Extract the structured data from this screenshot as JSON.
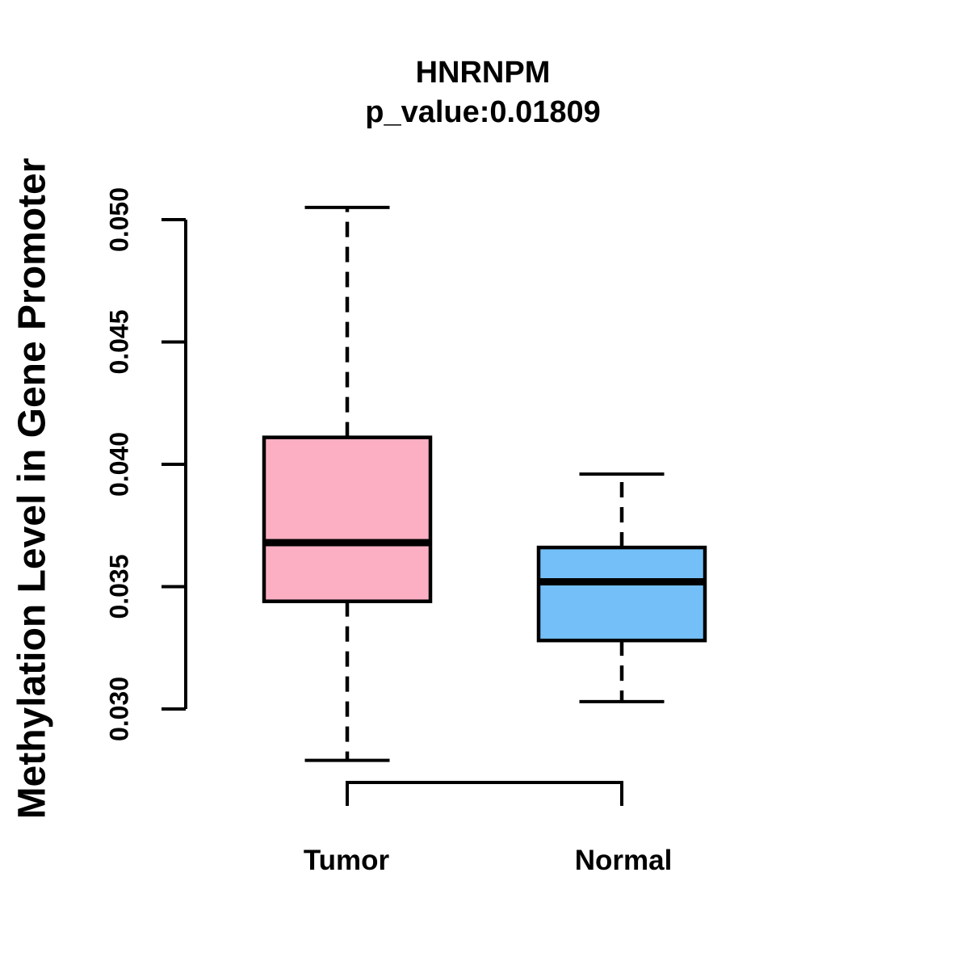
{
  "chart_data": {
    "type": "boxplot",
    "title": "HNRNPM",
    "subtitle": "p_value:0.01809",
    "ylabel": "Methylation Level in Gene Promoter",
    "categories": [
      "Tumor",
      "Normal"
    ],
    "y_ticks": [
      0.03,
      0.035,
      0.04,
      0.045,
      0.05
    ],
    "y_tick_labels": [
      "0.030",
      "0.035",
      "0.040",
      "0.045",
      "0.050"
    ],
    "ylim": [
      0.0279,
      0.0505
    ],
    "grid": false,
    "legend": "none",
    "orientation": "vertical",
    "series": [
      {
        "name": "Tumor",
        "fill_color": "#FCAFC2",
        "whisker_low": 0.0279,
        "q1": 0.0344,
        "median": 0.0368,
        "q3": 0.0411,
        "whisker_high": 0.0505
      },
      {
        "name": "Normal",
        "fill_color": "#74BFF7",
        "whisker_low": 0.0303,
        "q1": 0.0328,
        "median": 0.0352,
        "q3": 0.0366,
        "whisker_high": 0.0396
      }
    ],
    "stroke_color": "#000000"
  }
}
